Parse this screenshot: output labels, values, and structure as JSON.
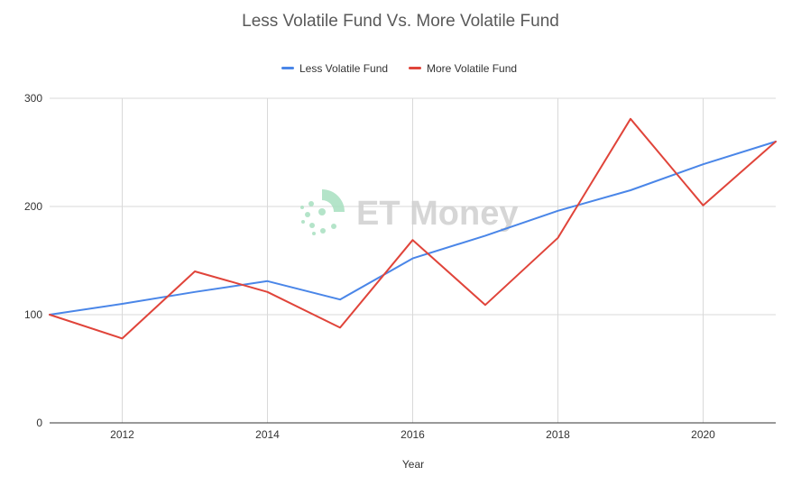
{
  "chart_data": {
    "type": "line",
    "title": "Less Volatile Fund  Vs. More Volatile Fund",
    "xlabel": "Year",
    "ylabel": "",
    "x": [
      2011,
      2012,
      2013,
      2014,
      2015,
      2016,
      2017,
      2018,
      2019,
      2020,
      2021
    ],
    "xlim": [
      2011,
      2021
    ],
    "ylim": [
      0,
      300
    ],
    "x_ticks": [
      "2012",
      "2014",
      "2016",
      "2018",
      "2020"
    ],
    "x_tick_values": [
      2012,
      2014,
      2016,
      2018,
      2020
    ],
    "y_ticks": [
      "0",
      "100",
      "200",
      "300"
    ],
    "y_tick_values": [
      0,
      100,
      200,
      300
    ],
    "grid": true,
    "legend_position": "top",
    "series": [
      {
        "name": "Less Volatile Fund",
        "color": "#4a86e8",
        "values": [
          100,
          110,
          121,
          131,
          114,
          152,
          173,
          196,
          215,
          239,
          260
        ]
      },
      {
        "name": "More Volatile Fund",
        "color": "#e0443a",
        "values": [
          100,
          78,
          140,
          121,
          88,
          169,
          109,
          171,
          281,
          201,
          260
        ]
      }
    ]
  },
  "watermark": {
    "text": "ET Money",
    "icon": "et-money-logo-icon",
    "color": "#cfcfcf",
    "accent": "#a8e0c0"
  }
}
